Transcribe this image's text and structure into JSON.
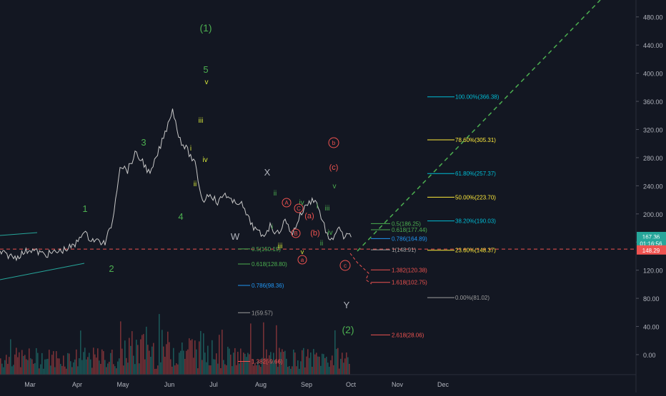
{
  "chart_data": {
    "type": "candlestick",
    "symbol_hint": "crypto price chart with Elliott wave and Fibonacci annotations",
    "x_axis": {
      "tick_labels": [
        "Mar",
        "Apr",
        "May",
        "Jun",
        "Jul",
        "Aug",
        "Sep",
        "Oct",
        "Nov",
        "Dec"
      ]
    },
    "y_axis": {
      "range": [
        -25,
        505
      ],
      "tick_labels": [
        "0.00",
        "40.00",
        "80.00",
        "120.00",
        "160.00",
        "200.00",
        "240.00",
        "280.00",
        "320.00",
        "360.00",
        "400.00",
        "440.00",
        "480.00"
      ],
      "tick_values": [
        0,
        40,
        80,
        120,
        160,
        200,
        240,
        280,
        320,
        360,
        400,
        440,
        480
      ]
    },
    "price_labels": [
      {
        "text": "167.36",
        "value": 167.36,
        "color": "#26a69a"
      },
      {
        "text": "01:16:56",
        "value": 157.8,
        "color": "#26a69a"
      },
      {
        "text": "148.29",
        "value": 148.29,
        "color": "#ef5350"
      }
    ],
    "price_series": {
      "description": "approximate daily closes, Feb to end of Sep",
      "x_days": [
        0,
        10,
        20,
        30,
        40,
        50,
        55,
        60,
        70,
        75,
        80,
        85,
        90,
        95,
        100,
        105,
        110,
        115,
        118,
        121,
        125,
        130,
        135,
        140,
        145,
        150,
        155,
        160,
        165,
        170,
        175,
        180,
        185,
        190,
        195,
        200,
        205,
        210,
        215,
        220,
        225,
        230,
        232,
        234
      ],
      "values": [
        145,
        138,
        150,
        142,
        147,
        155,
        175,
        165,
        158,
        190,
        270,
        262,
        285,
        275,
        255,
        285,
        315,
        350,
        320,
        302,
        290,
        270,
        218,
        230,
        215,
        230,
        215,
        218,
        195,
        178,
        168,
        183,
        172,
        190,
        172,
        198,
        215,
        222,
        190,
        158,
        180,
        165,
        170,
        167
      ]
    },
    "wave_labels": [
      {
        "text": "(1)",
        "color": "#4caf50"
      },
      {
        "text": "5",
        "color": "#4caf50"
      },
      {
        "text": "v",
        "color": "#d7e83a"
      },
      {
        "text": "iii",
        "color": "#d7e83a"
      },
      {
        "text": "i",
        "color": "#d7e83a"
      },
      {
        "text": "iv",
        "color": "#d7e83a"
      },
      {
        "text": "ii",
        "color": "#d7e83a"
      },
      {
        "text": "3",
        "color": "#4caf50"
      },
      {
        "text": "4",
        "color": "#4caf50"
      },
      {
        "text": "1",
        "color": "#4caf50"
      },
      {
        "text": "2",
        "color": "#4caf50"
      },
      {
        "text": "W",
        "color": "#b2b5be"
      },
      {
        "text": "X",
        "color": "#b2b5be"
      },
      {
        "text": "ii",
        "color": "#4caf50"
      },
      {
        "text": "i",
        "color": "#4caf50"
      },
      {
        "text": "iii",
        "color": "#d7e83a"
      },
      {
        "text": "iv",
        "color": "#4caf50"
      },
      {
        "text": "v",
        "color": "#4caf50"
      },
      {
        "text": "iii",
        "color": "#4caf50"
      },
      {
        "text": "i",
        "color": "#4caf50"
      },
      {
        "text": "ii",
        "color": "#4caf50"
      },
      {
        "text": "iv",
        "color": "#4caf50"
      },
      {
        "text": "v",
        "color": "#d7e83a"
      },
      {
        "text": "(c)",
        "color": "#ef5350"
      },
      {
        "text": "(a)",
        "color": "#ef5350"
      },
      {
        "text": "(b)",
        "color": "#ef5350"
      },
      {
        "text": "Y",
        "color": "#b2b5be"
      },
      {
        "text": "(2)",
        "color": "#4caf50"
      }
    ],
    "circled_labels": [
      {
        "text": "b",
        "color": "#ef5350"
      },
      {
        "text": "c",
        "color": "#ef5350"
      },
      {
        "text": "a",
        "color": "#ef5350"
      },
      {
        "text": "A",
        "color": "#ef5350"
      },
      {
        "text": "B",
        "color": "#ef5350"
      },
      {
        "text": "C",
        "color": "#ef5350"
      }
    ],
    "fib_levels": [
      {
        "label": "100.00%(366.38)",
        "value": 366.38,
        "color": "#00bcd4"
      },
      {
        "label": "78.60%(305.31)",
        "value": 305.31,
        "color": "#ffeb3b"
      },
      {
        "label": "61.80%(257.37)",
        "value": 257.37,
        "color": "#00bcd4"
      },
      {
        "label": "50.00%(223.70)",
        "value": 223.7,
        "color": "#ffeb3b"
      },
      {
        "label": "38.20%(190.03)",
        "value": 190.03,
        "color": "#00bcd4"
      },
      {
        "label": "23.60%(148.37)",
        "value": 148.37,
        "color": "#ffeb3b"
      },
      {
        "label": "0.00%(81.02)",
        "value": 81.02,
        "color": "#9e9e9e"
      }
    ],
    "retrace_levels": [
      {
        "label": "0.5(150.19)",
        "value": 150.19,
        "color": "#4caf50"
      },
      {
        "label": "0.618(128.80)",
        "value": 128.8,
        "color": "#4caf50"
      },
      {
        "label": "0.786(98.36)",
        "value": 98.36,
        "color": "#2196f3"
      },
      {
        "label": "1(59.57)",
        "value": 59.57,
        "color": "#9e9e9e"
      },
      {
        "label": "1.382(-9.66)",
        "value": -9.66,
        "color": "#ef5350"
      }
    ],
    "ext_levels": [
      {
        "label": "0.5(186.25)",
        "value": 186.25,
        "color": "#4caf50"
      },
      {
        "label": "0.618(177.44)",
        "value": 177.44,
        "color": "#4caf50"
      },
      {
        "label": "0.786(164.89)",
        "value": 164.89,
        "color": "#2196f3"
      },
      {
        "label": "1(148.91)",
        "value": 148.91,
        "color": "#9e9e9e"
      },
      {
        "label": "1.382(120.38)",
        "value": 120.38,
        "color": "#ef5350"
      },
      {
        "label": "1.618(102.75)",
        "value": 102.75,
        "color": "#ef5350"
      },
      {
        "label": "2.618(28.06)",
        "value": 28.06,
        "color": "#ef5350"
      }
    ],
    "reference_line": {
      "value": 150,
      "color": "#ef5350",
      "style": "dashed"
    },
    "projection_line": {
      "color": "#4caf50",
      "style": "dashed"
    },
    "colors": {
      "background": "#131722",
      "axis_text": "#b2b5be",
      "up": "#26a69a",
      "down": "#ef5350",
      "price_line": "#c8c8c8"
    }
  }
}
